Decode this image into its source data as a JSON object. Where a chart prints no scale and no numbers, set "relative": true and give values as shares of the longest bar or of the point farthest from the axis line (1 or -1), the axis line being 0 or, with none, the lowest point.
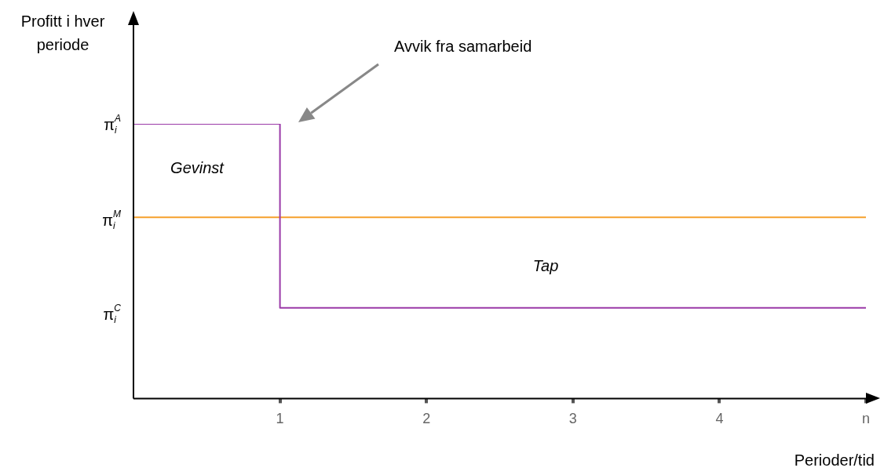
{
  "chart_data": {
    "type": "step",
    "relative": true,
    "xlabel": "Perioder/tid",
    "ylabel": "Profitt i hver periode",
    "xlim": [
      0,
      5
    ],
    "xticks": [
      1,
      2,
      3,
      4,
      {
        "value": 5,
        "label": "n"
      }
    ],
    "series": [
      {
        "color": "#9b3aa8",
        "x": [
          0,
          1,
          1,
          5
        ],
        "values": [
          1,
          1,
          0.33,
          0.33
        ]
      },
      {
        "type": "line",
        "color": "#f5a02c",
        "x": [
          0,
          5
        ],
        "values": [
          0.66,
          0.66
        ]
      }
    ],
    "annotations": [
      "π$_{i}$$^{A}$",
      "π$_{i}$$^{M}$",
      "π$_{i}$$^{C}$",
      "Avvik fra samarbeid",
      "Gevinst",
      "Tap"
    ],
    "grid": false,
    "legend": false,
    "marker": "none",
    "line_style": "solid"
  }
}
